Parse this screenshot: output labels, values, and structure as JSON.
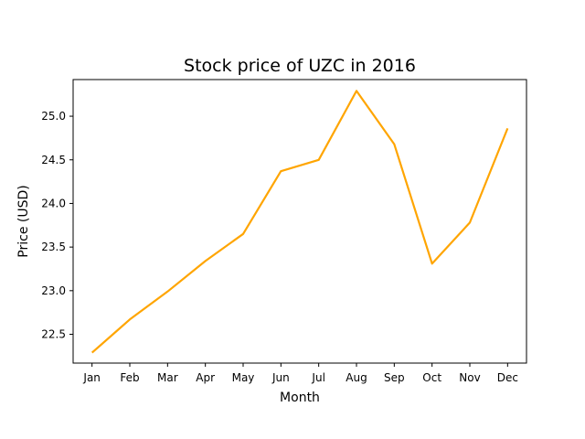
{
  "chart_data": {
    "type": "line",
    "title": "Stock price of UZC in 2016",
    "xlabel": "Month",
    "ylabel": "Price (USD)",
    "categories": [
      "Jan",
      "Feb",
      "Mar",
      "Apr",
      "May",
      "Jun",
      "Jul",
      "Aug",
      "Sep",
      "Oct",
      "Nov",
      "Dec"
    ],
    "series": [
      {
        "values": [
          22.29,
          22.67,
          22.99,
          23.34,
          23.65,
          24.37,
          24.5,
          25.29,
          24.68,
          23.31,
          23.78,
          24.86
        ],
        "color": "#ffa500"
      }
    ],
    "yticks": [
      "22.5",
      "23.0",
      "23.5",
      "24.0",
      "24.5",
      "25.0"
    ],
    "ylim": [
      22.17,
      25.42
    ],
    "grid": false,
    "legend": "none"
  }
}
